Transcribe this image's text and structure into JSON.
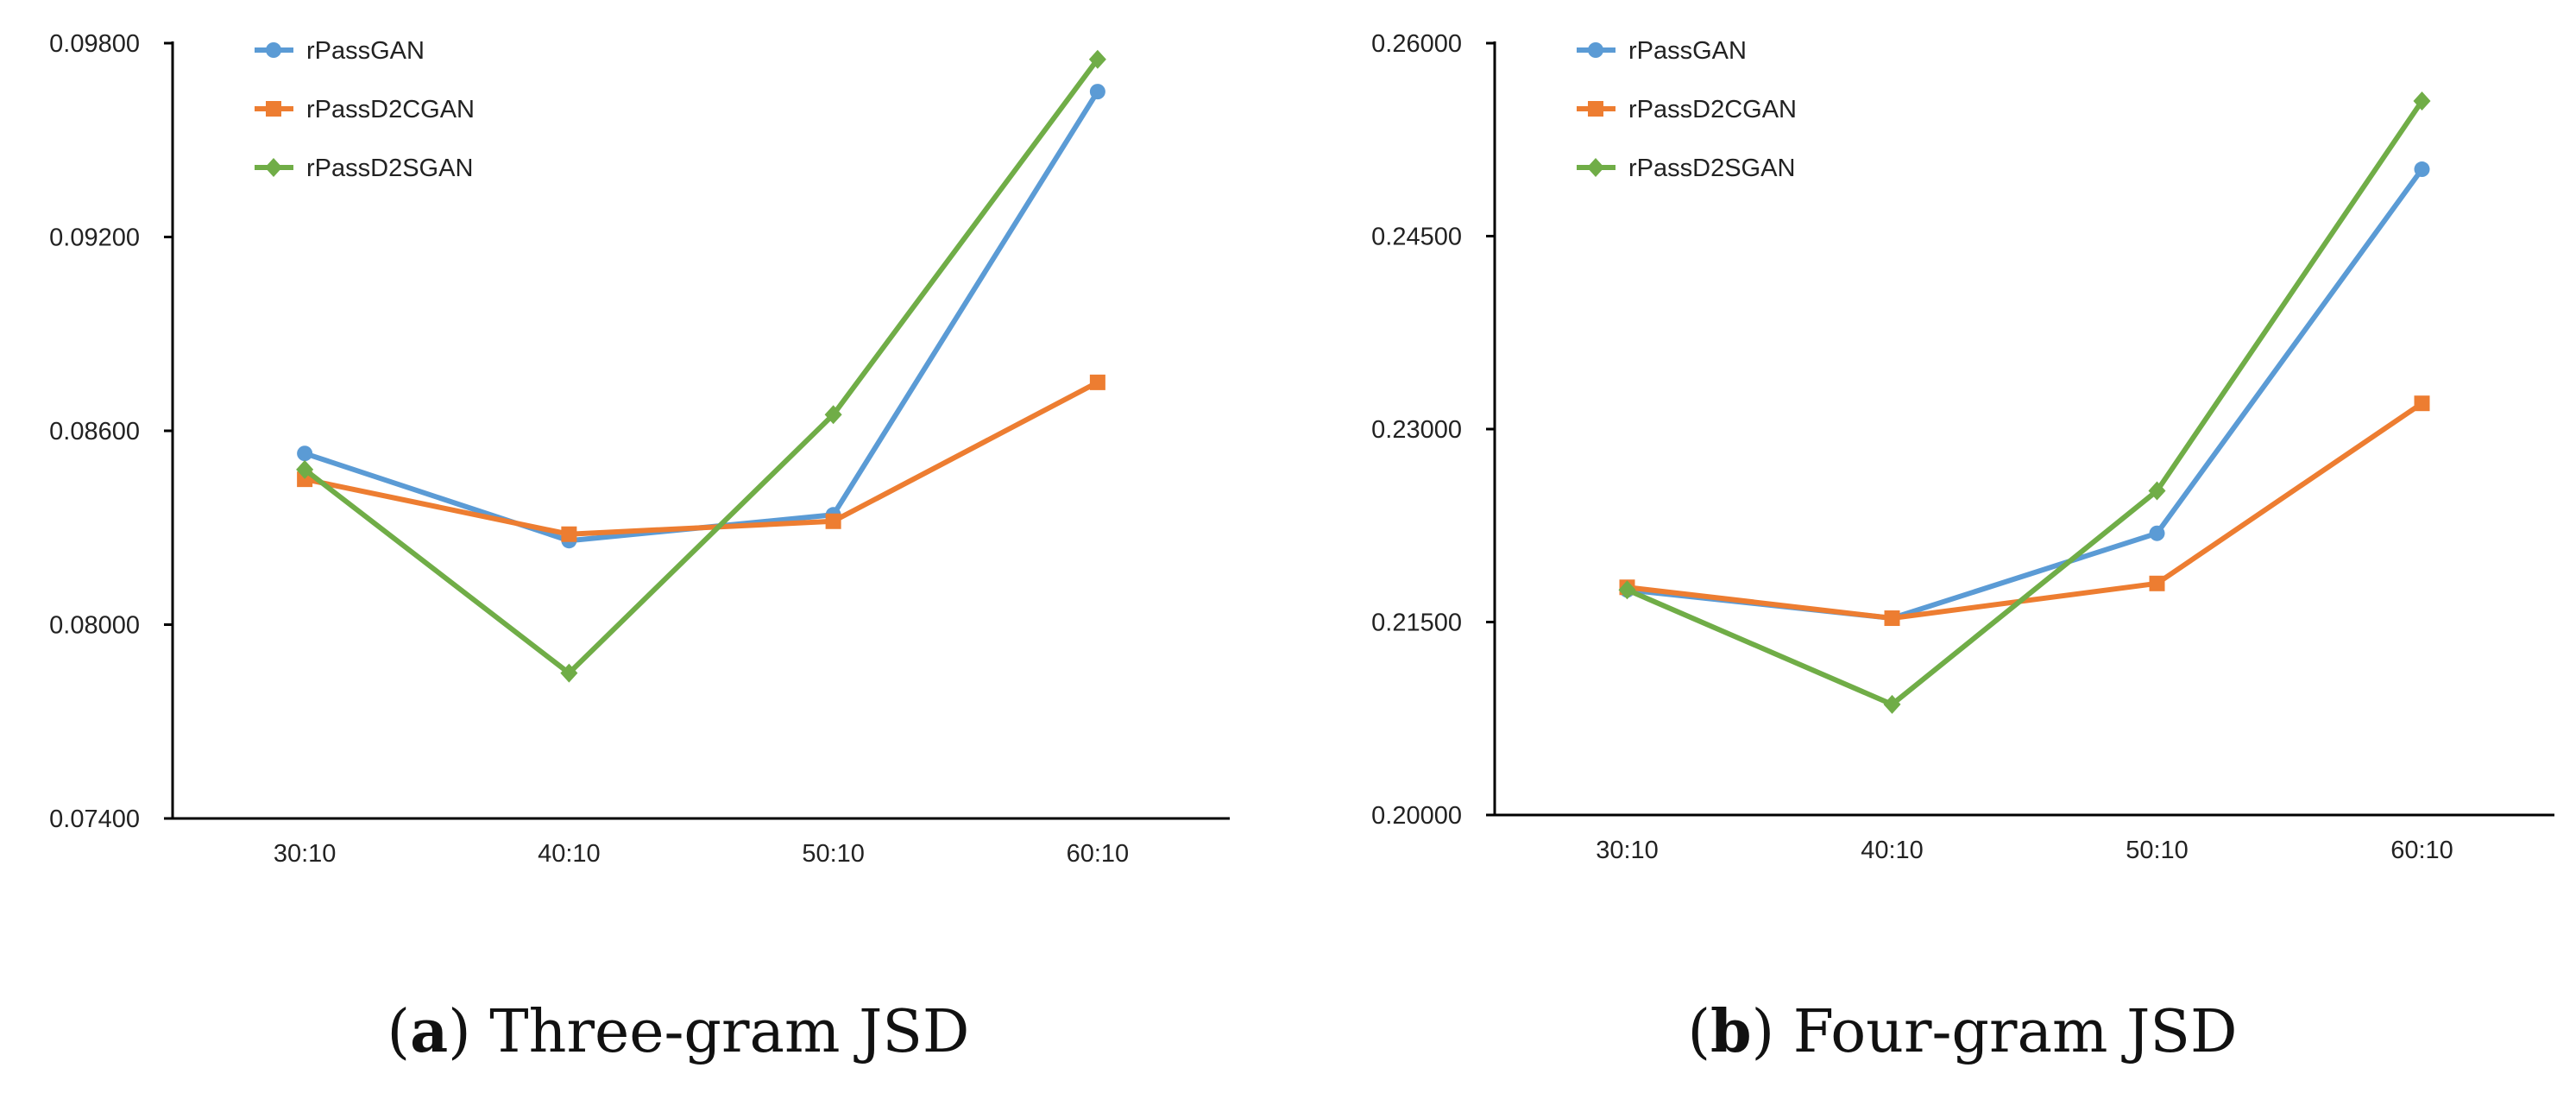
{
  "colors": {
    "rPassGAN": "#5b9bd5",
    "rPassD2CGAN": "#ed7d31",
    "rPassD2SGAN": "#70ad47",
    "axis": "#000000",
    "text": "#222222"
  },
  "chart_data": [
    {
      "type": "line",
      "title": "",
      "caption": {
        "label": "a",
        "text": "Three-gram JSD"
      },
      "categories": [
        "30:10",
        "40:10",
        "50:10",
        "60:10"
      ],
      "yticks": [
        "0.07400",
        "0.08000",
        "0.08600",
        "0.09200",
        "0.09800"
      ],
      "ylim": [
        0.074,
        0.098
      ],
      "xlabel": "",
      "ylabel": "",
      "legend_position": "top-left",
      "series": [
        {
          "name": "rPassGAN",
          "marker": "circle",
          "values": [
            0.0853,
            0.0826,
            0.0834,
            0.0965
          ]
        },
        {
          "name": "rPassD2CGAN",
          "marker": "square",
          "values": [
            0.0845,
            0.0828,
            0.0832,
            0.0875
          ]
        },
        {
          "name": "rPassD2SGAN",
          "marker": "diamond",
          "values": [
            0.0848,
            0.0785,
            0.0865,
            0.0975
          ]
        }
      ]
    },
    {
      "type": "line",
      "title": "",
      "caption": {
        "label": "b",
        "text": "Four-gram JSD"
      },
      "categories": [
        "30:10",
        "40:10",
        "50:10",
        "60:10"
      ],
      "yticks": [
        "0.20000",
        "0.21500",
        "0.23000",
        "0.24500",
        "0.26000"
      ],
      "ylim": [
        0.2,
        0.26
      ],
      "xlabel": "",
      "ylabel": "",
      "legend_position": "top-left",
      "series": [
        {
          "name": "rPassGAN",
          "marker": "circle",
          "values": [
            0.2175,
            0.2153,
            0.2219,
            0.2502
          ]
        },
        {
          "name": "rPassD2CGAN",
          "marker": "square",
          "values": [
            0.2177,
            0.2153,
            0.218,
            0.232
          ]
        },
        {
          "name": "rPassD2SGAN",
          "marker": "diamond",
          "values": [
            0.2175,
            0.2086,
            0.2252,
            0.2555
          ]
        }
      ]
    }
  ]
}
